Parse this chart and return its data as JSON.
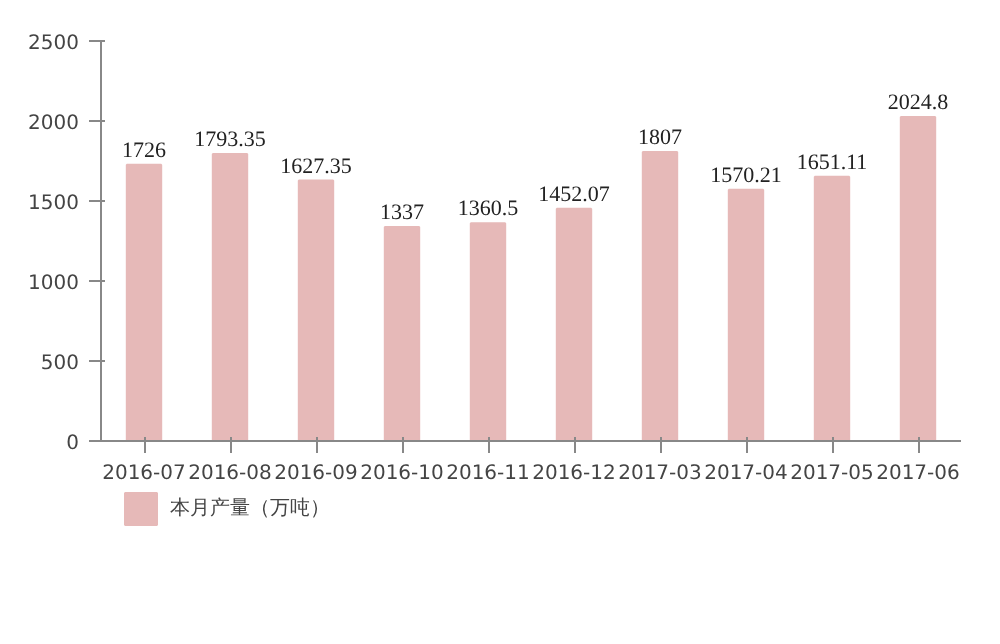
{
  "chart_data": {
    "type": "bar",
    "categories": [
      "2016-07",
      "2016-08",
      "2016-09",
      "2016-10",
      "2016-11",
      "2016-12",
      "2017-03",
      "2017-04",
      "2017-05",
      "2017-06"
    ],
    "series": [
      {
        "name": "本月产量（万吨）",
        "color": "#e6b9b8",
        "values": [
          1726,
          1793.35,
          1627.35,
          1337,
          1360.5,
          1452.07,
          1807,
          1570.21,
          1651.11,
          2024.8
        ]
      }
    ],
    "ylim": [
      0,
      2500
    ],
    "yticks": [
      0,
      500,
      1000,
      1500,
      2000,
      2500
    ],
    "data_labels": true,
    "legend": "bottom left",
    "grid": false
  }
}
